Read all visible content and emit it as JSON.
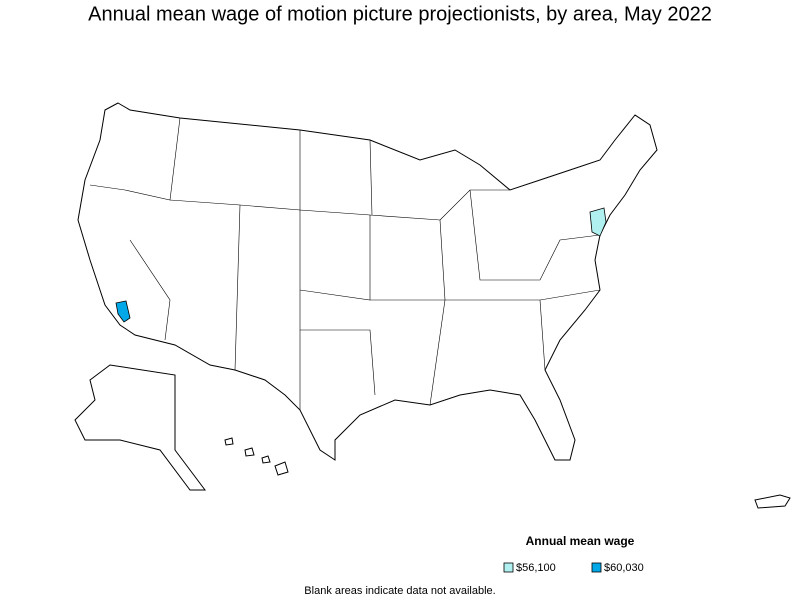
{
  "title": "Annual mean wage of motion picture projectionists, by area, May 2022",
  "legend": {
    "title": "Annual mean wage",
    "items": [
      {
        "label": "$56,100",
        "color": "#b0f0f0"
      },
      {
        "label": "$60,030",
        "color": "#00a8e8"
      }
    ]
  },
  "note": "Blank areas indicate data not available."
}
